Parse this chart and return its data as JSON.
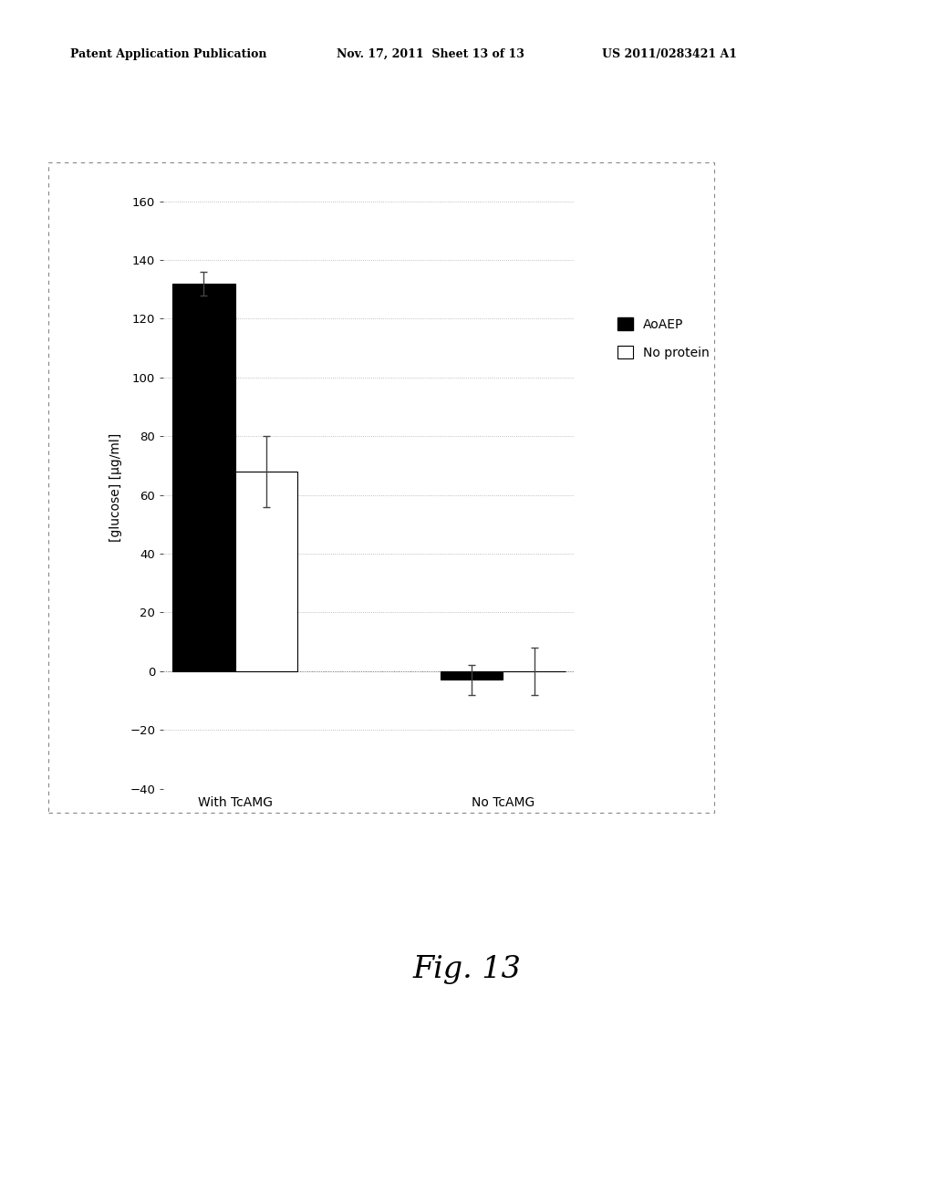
{
  "groups": [
    "With TcAMG",
    "No TcAMG"
  ],
  "series": [
    "AoAEP",
    "No protein"
  ],
  "values": [
    [
      132,
      68
    ],
    [
      -3,
      0
    ]
  ],
  "errors": [
    [
      4,
      12
    ],
    [
      5,
      8
    ]
  ],
  "bar_colors": [
    "#000000",
    "#ffffff"
  ],
  "bar_edgecolors": [
    "#000000",
    "#000000"
  ],
  "ylabel": "[glucose] [µg/ml]",
  "ylim": [
    -40,
    165
  ],
  "yticks": [
    -40,
    -20,
    0,
    20,
    40,
    60,
    80,
    100,
    120,
    140,
    160
  ],
  "fig_caption": "Fig. 13",
  "header_left": "Patent Application Publication",
  "header_mid": "Nov. 17, 2011  Sheet 13 of 13",
  "header_right": "US 2011/0283421 A1",
  "legend_labels": [
    "AoAEP",
    "No protein"
  ],
  "bar_width": 0.28,
  "group_positions": [
    0.6,
    1.8
  ],
  "background_color": "#ffffff",
  "plot_bg_color": "#ffffff"
}
